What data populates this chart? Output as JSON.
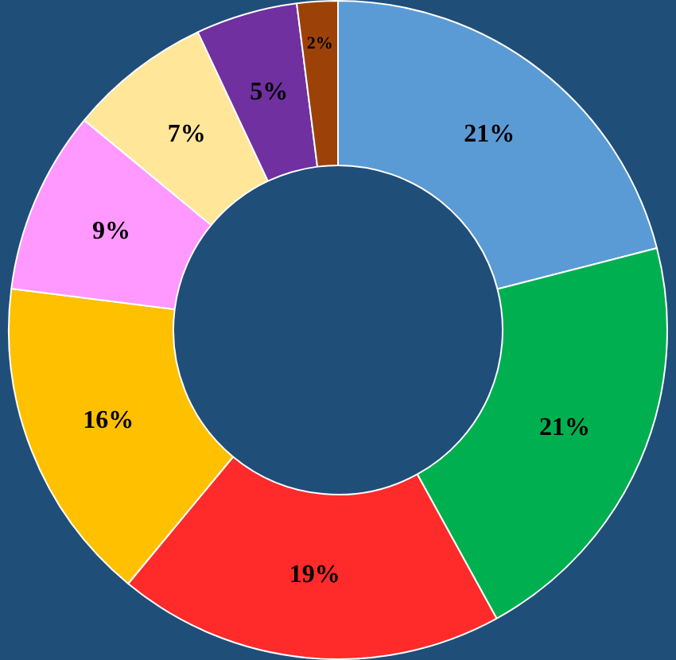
{
  "chart_data": {
    "type": "donut",
    "categories": [
      null,
      null,
      null,
      null,
      null,
      null,
      null,
      null
    ],
    "values": [
      21,
      21,
      19,
      16,
      9,
      7,
      5,
      2
    ],
    "colors": [
      "#5b9bd5",
      "#00b050",
      "#ff2a2a",
      "#ffc000",
      "#ff99ff",
      "#ffe699",
      "#7030a0",
      "#9c4209"
    ],
    "value_labels": [
      "21%",
      "21%",
      "19%",
      "16%",
      "9%",
      "7%",
      "5%",
      "2%"
    ],
    "legend": false
  }
}
